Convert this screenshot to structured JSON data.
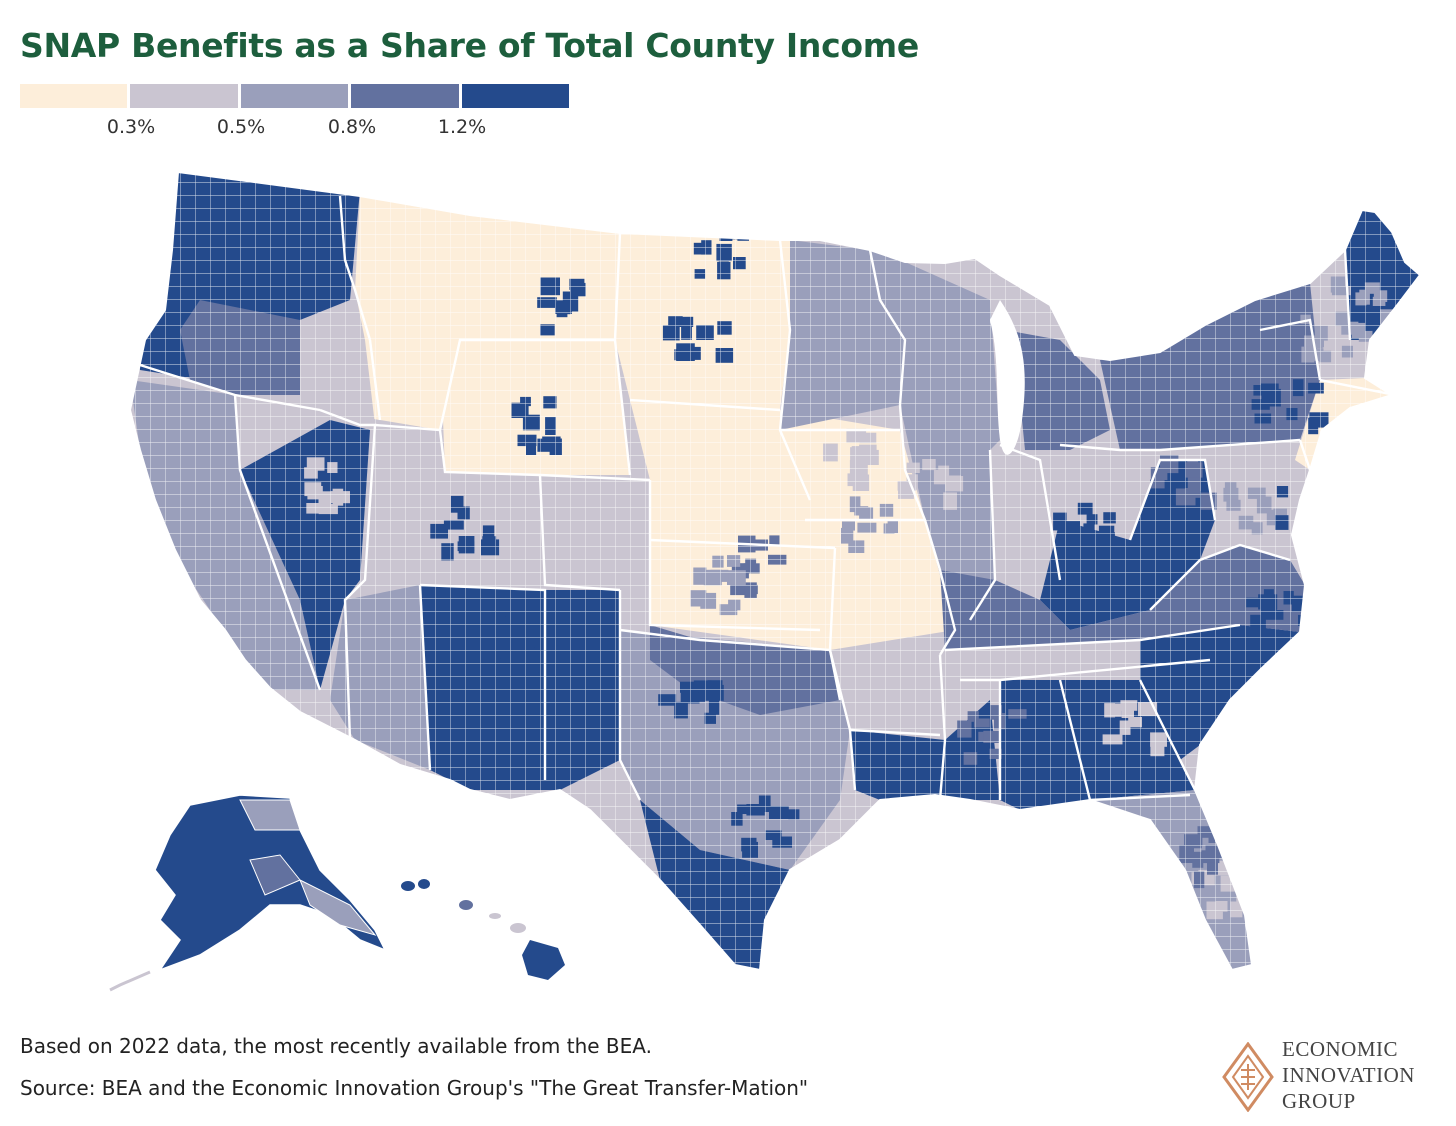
{
  "title": "SNAP Benefits as a Share of Total County Income",
  "legend": {
    "bins": [
      {
        "color": "#fdeeda"
      },
      {
        "color": "#cac5d1"
      },
      {
        "color": "#9a9fbb"
      },
      {
        "color": "#62719f"
      },
      {
        "color": "#244a8c"
      }
    ],
    "breaks": [
      "0.3%",
      "0.5%",
      "0.8%",
      "1.2%"
    ]
  },
  "note": "Based on 2022 data, the most recently available from the BEA.",
  "source": "Source: BEA and the Economic Innovation Group's \"The Great Transfer-Mation\"",
  "logo": {
    "lines": [
      "ECONOMIC",
      "INNOVATION",
      "GROUP"
    ],
    "color": "#d08b62"
  },
  "map": {
    "boundary_color": "#ffffff",
    "regions": [
      {
        "name": "pacific-northwest",
        "bin": 4
      },
      {
        "name": "west-coast-interior",
        "bin": 3
      },
      {
        "name": "california-coast",
        "bin": 2
      },
      {
        "name": "northern-great-plains",
        "bin": 0
      },
      {
        "name": "northern-rockies",
        "bin": 0
      },
      {
        "name": "great-basin",
        "bin": 1
      },
      {
        "name": "nevada",
        "bin": 4
      },
      {
        "name": "arizona",
        "bin": 2
      },
      {
        "name": "new-mexico",
        "bin": 4
      },
      {
        "name": "texas-west",
        "bin": 2
      },
      {
        "name": "texas-south",
        "bin": 4
      },
      {
        "name": "oklahoma",
        "bin": 3
      },
      {
        "name": "midwest-plains",
        "bin": 0
      },
      {
        "name": "upper-midwest",
        "bin": 2
      },
      {
        "name": "lower-mississippi",
        "bin": 4
      },
      {
        "name": "deep-south",
        "bin": 4
      },
      {
        "name": "appalachia",
        "bin": 4
      },
      {
        "name": "carolinas",
        "bin": 4
      },
      {
        "name": "ohio-valley",
        "bin": 3
      },
      {
        "name": "northeast",
        "bin": 3
      },
      {
        "name": "new-england-coast",
        "bin": 0
      },
      {
        "name": "maine",
        "bin": 4
      },
      {
        "name": "florida",
        "bin": 2
      },
      {
        "name": "michigan",
        "bin": 3
      },
      {
        "name": "alaska",
        "bin": 4
      },
      {
        "name": "hawaii",
        "bin": 4
      }
    ]
  }
}
